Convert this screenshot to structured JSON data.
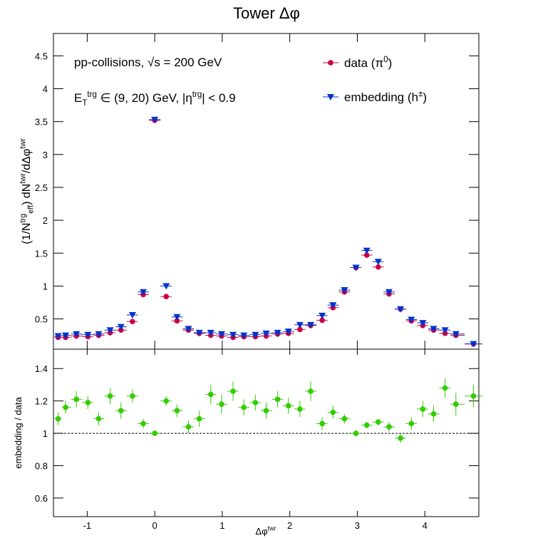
{
  "chart_data": [
    {
      "type": "scatter",
      "title": "Tower Δφ",
      "ylabel": [
        {
          "t": "(1/N"
        },
        {
          "t": "trg",
          "s": "sup"
        },
        {
          "t": "eff",
          "s": "sub"
        },
        {
          "t": ") dN"
        },
        {
          "t": "twr",
          "s": "sup"
        },
        {
          "t": "/dΔφ"
        },
        {
          "t": "twr",
          "s": "sup"
        }
      ],
      "annotations": [
        [
          {
            "t": "pp-collisions, √s = 200 GeV"
          }
        ],
        [
          {
            "t": "E"
          },
          {
            "t": "T",
            "s": "sub"
          },
          {
            "t": "trg",
            "s": "sup"
          },
          {
            "t": " ∈ (9, 20) GeV, |η"
          },
          {
            "t": "trg",
            "s": "sup"
          },
          {
            "t": "| < 0.9"
          }
        ]
      ],
      "x": [
        -1.43,
        -1.32,
        -1.16,
        -0.99,
        -0.83,
        -0.66,
        -0.5,
        -0.33,
        -0.17,
        0,
        0.17,
        0.33,
        0.5,
        0.66,
        0.83,
        0.99,
        1.16,
        1.32,
        1.49,
        1.65,
        1.82,
        1.98,
        2.15,
        2.31,
        2.48,
        2.64,
        2.81,
        2.98,
        3.14,
        3.31,
        3.47,
        3.64,
        3.8,
        3.97,
        4.13,
        4.3,
        4.46,
        4.72
      ],
      "series": [
        {
          "name": [
            {
              "t": "data (π"
            },
            {
              "t": "0",
              "s": "sup"
            },
            {
              "t": ")"
            }
          ],
          "color": "#cc0044",
          "marker": "circle",
          "values": [
            0.22,
            0.22,
            0.24,
            0.23,
            0.25,
            0.29,
            0.33,
            0.46,
            0.87,
            3.52,
            0.84,
            0.47,
            0.33,
            0.28,
            0.25,
            0.24,
            0.22,
            0.23,
            0.23,
            0.24,
            0.27,
            0.28,
            0.34,
            0.4,
            0.48,
            0.67,
            0.91,
            1.28,
            1.47,
            1.29,
            0.88,
            0.65,
            0.47,
            0.4,
            0.33,
            0.28,
            0.25,
            0.12
          ]
        },
        {
          "name": [
            {
              "t": "embedding (h"
            },
            {
              "t": "±",
              "s": "sup"
            },
            {
              "t": ")"
            }
          ],
          "color": "#0033cc",
          "marker": "triangle-down",
          "values": [
            0.24,
            0.25,
            0.27,
            0.26,
            0.27,
            0.33,
            0.38,
            0.56,
            0.91,
            3.53,
            1.0,
            0.53,
            0.35,
            0.29,
            0.29,
            0.27,
            0.26,
            0.25,
            0.26,
            0.28,
            0.29,
            0.31,
            0.41,
            0.41,
            0.55,
            0.71,
            0.94,
            1.28,
            1.54,
            1.37,
            0.91,
            0.65,
            0.49,
            0.44,
            0.35,
            0.33,
            0.27,
            0.12
          ]
        }
      ],
      "xlim": [
        -1.5,
        4.8
      ],
      "xticks": [
        -1,
        0,
        1,
        2,
        3,
        4
      ],
      "xtick_labels": false,
      "ylim": [
        0.04,
        4.84
      ],
      "yticks": [
        0.5,
        1,
        1.5,
        2,
        2.5,
        3,
        3.5,
        4,
        4.5
      ]
    },
    {
      "type": "scatter",
      "xlabel": [
        {
          "t": "Δφ"
        },
        {
          "t": "twr",
          "s": "sup"
        }
      ],
      "ylabel": [
        {
          "t": "embedding / data"
        }
      ],
      "x": [
        -1.43,
        -1.32,
        -1.16,
        -0.99,
        -0.83,
        -0.66,
        -0.5,
        -0.33,
        -0.17,
        0,
        0.17,
        0.33,
        0.5,
        0.66,
        0.83,
        0.99,
        1.16,
        1.32,
        1.49,
        1.65,
        1.82,
        1.98,
        2.15,
        2.31,
        2.48,
        2.64,
        2.81,
        2.98,
        3.14,
        3.31,
        3.47,
        3.64,
        3.8,
        3.97,
        4.13,
        4.3,
        4.46,
        4.72
      ],
      "series": [
        {
          "color": "#33cc00",
          "marker": "circle",
          "values": [
            1.09,
            1.16,
            1.21,
            1.19,
            1.09,
            1.23,
            1.14,
            1.23,
            1.06,
            1.0,
            1.2,
            1.14,
            1.04,
            1.09,
            1.24,
            1.18,
            1.26,
            1.16,
            1.19,
            1.14,
            1.21,
            1.17,
            1.15,
            1.26,
            1.06,
            1.13,
            1.09,
            1.0,
            1.05,
            1.07,
            1.04,
            0.97,
            1.06,
            1.15,
            1.12,
            1.28,
            1.18,
            1.23
          ],
          "errors": [
            0.04,
            0.04,
            0.05,
            0.04,
            0.04,
            0.05,
            0.05,
            0.04,
            0.03,
            0.01,
            0.03,
            0.04,
            0.04,
            0.05,
            0.06,
            0.06,
            0.06,
            0.05,
            0.05,
            0.05,
            0.05,
            0.05,
            0.05,
            0.06,
            0.04,
            0.04,
            0.03,
            0.02,
            0.02,
            0.02,
            0.03,
            0.03,
            0.04,
            0.05,
            0.05,
            0.06,
            0.07,
            0.07
          ]
        }
      ],
      "reference_line": 1,
      "xlim": [
        -1.5,
        4.8
      ],
      "xticks": [
        -1,
        0,
        1,
        2,
        3,
        4
      ],
      "xtick_labels": true,
      "ylim": [
        0.485,
        1.52
      ],
      "yticks": [
        0.6,
        0.8,
        1,
        1.2,
        1.4
      ]
    }
  ]
}
